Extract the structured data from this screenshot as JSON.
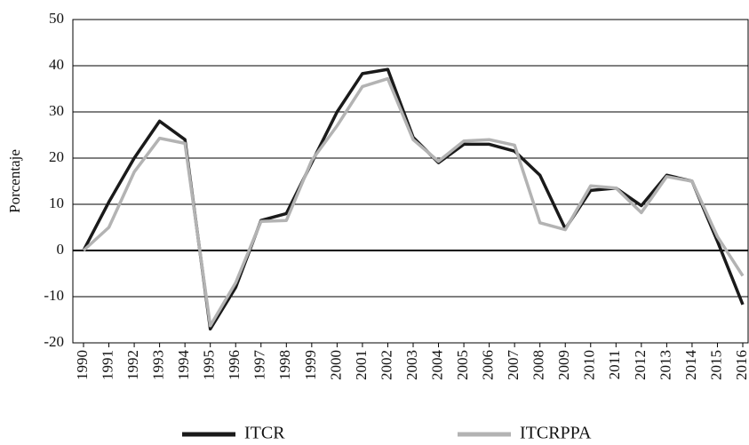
{
  "chart_data": {
    "type": "line",
    "y_label": "Porcentaje",
    "categories": [
      "1990",
      "1991",
      "1992",
      "1993",
      "1994",
      "1995",
      "1996",
      "1997",
      "1998",
      "1999",
      "2000",
      "2001",
      "2002",
      "2003",
      "2004",
      "2005",
      "2006",
      "2007",
      "2008",
      "2009",
      "2010",
      "2011",
      "2012",
      "2013",
      "2014",
      "2015",
      "2016"
    ],
    "series": [
      {
        "name": "ITCR",
        "color": "#1a1a1a",
        "values": [
          0,
          10.5,
          20,
          28,
          24,
          -17,
          -8,
          6.5,
          8,
          19,
          30,
          38.3,
          39.2,
          24.5,
          19,
          23,
          23,
          21.5,
          16.3,
          4.7,
          13,
          13.5,
          9.7,
          16.3,
          15,
          2,
          -11.7
        ]
      },
      {
        "name": "ITCRPPA",
        "color": "#b3b3b3",
        "values": [
          0,
          5,
          17,
          24.3,
          23.2,
          -16.3,
          -7,
          6.3,
          6.5,
          19.5,
          27,
          35.5,
          37.2,
          24,
          19.3,
          23.7,
          24,
          22.8,
          6,
          4.5,
          14,
          13.5,
          8.2,
          16,
          15,
          3,
          -5.5
        ]
      }
    ],
    "ylim": [
      -20,
      50
    ],
    "yticks": [
      -20,
      -10,
      0,
      10,
      20,
      30,
      40,
      50
    ],
    "grid": true,
    "legend": "bottom"
  }
}
